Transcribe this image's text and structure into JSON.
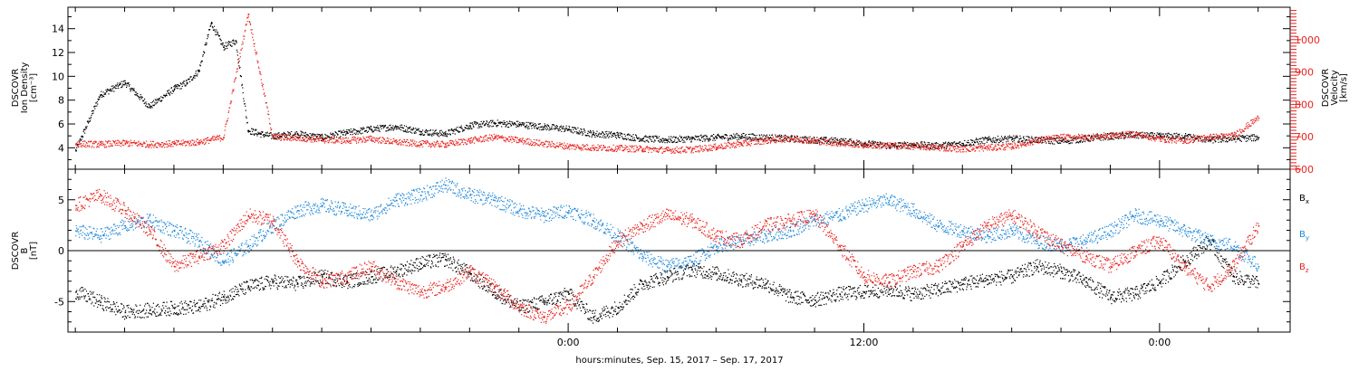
{
  "footer_label": "hours:minutes, Sep. 15, 2017 – Sep. 17, 2017",
  "colors": {
    "black": "#000000",
    "red": "#e8231f",
    "blue": "#1e88d8"
  },
  "chart_data": [
    {
      "type": "scatter",
      "panel": "ion-density-velocity",
      "ylabel": [
        "DSCOVR",
        "Ion Density",
        "[cm⁻³]"
      ],
      "ylabel_right": [
        "DSCOVR",
        "Velocity",
        "[km/s]"
      ],
      "ylim": [
        2.2,
        15.8
      ],
      "yticks": [
        4,
        6,
        8,
        10,
        12,
        14
      ],
      "ylim_right": [
        600,
        1100
      ],
      "yticks_right": [
        600,
        700,
        800,
        900,
        1000
      ],
      "series": [
        {
          "color": "black",
          "axis": "left",
          "x": [
            -20.0,
            -19.0,
            -18.0,
            -17.0,
            -16.0,
            -15.5,
            -15.0,
            -14.5,
            -14.0,
            -13.5,
            -13.0,
            -12.5,
            -12.0,
            -11.0,
            -10.0,
            -9.0,
            -8.0,
            -7.0,
            -6.0,
            -5.0,
            -4.0,
            -3.0,
            -2.0,
            -1.0,
            0.0,
            1.0,
            2.0,
            3.0,
            4.0,
            5.0,
            6.0,
            7.0,
            8.0,
            9.0,
            10.0,
            11.0,
            12.0,
            13.0,
            14.0,
            15.0,
            16.0,
            17.0,
            18.0,
            19.0,
            20.0,
            21.0,
            22.0,
            23.0,
            24.0,
            25.0,
            26.0,
            27.0,
            28.0
          ],
          "y": [
            3.8,
            8.5,
            9.5,
            7.5,
            9.0,
            9.5,
            10.5,
            14.5,
            12.5,
            13.0,
            5.5,
            5.2,
            5.0,
            5.2,
            4.9,
            5.3,
            5.6,
            5.8,
            5.4,
            5.2,
            5.9,
            6.1,
            6.0,
            5.8,
            5.6,
            5.2,
            5.1,
            4.8,
            4.7,
            4.8,
            4.9,
            5.0,
            4.9,
            4.8,
            4.7,
            4.6,
            4.4,
            4.2,
            4.3,
            4.2,
            4.4,
            4.7,
            4.8,
            4.7,
            4.6,
            4.8,
            5.0,
            5.1,
            5.0,
            5.0,
            4.7,
            4.8,
            4.9
          ]
        },
        {
          "color": "red",
          "axis": "right",
          "x": [
            -20.0,
            -19.0,
            -18.0,
            -17.0,
            -16.0,
            -15.0,
            -14.0,
            -13.0,
            -12.0,
            -11.0,
            -10.0,
            -9.0,
            -8.0,
            -7.0,
            -6.0,
            -5.0,
            -4.0,
            -3.0,
            -2.0,
            -1.0,
            0.0,
            1.0,
            2.0,
            3.0,
            4.0,
            5.0,
            6.0,
            7.0,
            8.0,
            9.0,
            10.0,
            11.0,
            12.0,
            13.0,
            14.0,
            15.0,
            16.0,
            17.0,
            18.0,
            19.0,
            20.0,
            21.0,
            22.0,
            23.0,
            24.0,
            25.0,
            26.0,
            27.0,
            28.0
          ],
          "y": [
            680,
            678,
            682,
            678,
            680,
            685,
            700,
            1080,
            700,
            698,
            692,
            690,
            695,
            685,
            680,
            678,
            690,
            700,
            690,
            680,
            672,
            668,
            666,
            664,
            660,
            662,
            670,
            680,
            690,
            696,
            688,
            682,
            676,
            674,
            672,
            668,
            664,
            668,
            672,
            690,
            700,
            700,
            705,
            710,
            695,
            690,
            700,
            705,
            760
          ]
        }
      ]
    },
    {
      "type": "scatter",
      "panel": "magnetic-field",
      "ylabel": [
        "DSCOVR",
        "B",
        "[nT]"
      ],
      "ylim": [
        -8,
        8
      ],
      "yticks": [
        -5,
        0,
        5
      ],
      "legend": [
        "Bx",
        "By",
        "Bz"
      ],
      "series": [
        {
          "name": "Bx",
          "color": "black",
          "x": [
            -20.0,
            -19.0,
            -18.0,
            -17.0,
            -16.0,
            -15.0,
            -14.0,
            -13.0,
            -12.0,
            -11.0,
            -10.0,
            -9.0,
            -8.0,
            -7.0,
            -6.0,
            -5.0,
            -4.0,
            -3.0,
            -2.0,
            -1.0,
            0.0,
            1.0,
            2.0,
            3.0,
            4.0,
            5.0,
            6.0,
            7.0,
            8.0,
            9.0,
            10.0,
            11.0,
            12.0,
            13.0,
            14.0,
            15.0,
            16.0,
            17.0,
            18.0,
            19.0,
            20.0,
            21.0,
            22.0,
            23.0,
            24.0,
            25.0,
            26.0,
            27.0,
            28.0
          ],
          "y": [
            -4.0,
            -5.0,
            -6.0,
            -5.8,
            -5.6,
            -5.5,
            -4.5,
            -3.5,
            -3.0,
            -3.2,
            -2.5,
            -3.0,
            -2.5,
            -2.0,
            -1.2,
            -0.8,
            -2.2,
            -4.0,
            -5.5,
            -5.0,
            -4.2,
            -6.5,
            -5.5,
            -3.2,
            -2.5,
            -1.8,
            -2.2,
            -2.8,
            -3.2,
            -4.5,
            -4.8,
            -4.2,
            -4.0,
            -3.8,
            -4.2,
            -3.8,
            -3.2,
            -2.8,
            -2.5,
            -1.5,
            -2.0,
            -3.0,
            -4.5,
            -4.2,
            -3.0,
            -1.0,
            1.0,
            -2.5,
            -3.2
          ]
        },
        {
          "name": "By",
          "color": "blue",
          "x": [
            -20.0,
            -19.0,
            -18.0,
            -17.0,
            -16.0,
            -15.0,
            -14.0,
            -13.0,
            -12.0,
            -11.0,
            -10.0,
            -9.0,
            -8.0,
            -7.0,
            -6.0,
            -5.0,
            -4.0,
            -3.0,
            -2.0,
            -1.0,
            0.0,
            1.0,
            2.0,
            3.0,
            4.0,
            5.0,
            6.0,
            7.0,
            8.0,
            9.0,
            10.0,
            11.0,
            12.0,
            13.0,
            14.0,
            15.0,
            16.0,
            17.0,
            18.0,
            19.0,
            20.0,
            21.0,
            22.0,
            23.0,
            24.0,
            25.0,
            26.0,
            27.0,
            28.0
          ],
          "y": [
            2.0,
            1.5,
            2.5,
            3.0,
            2.0,
            1.0,
            -1.0,
            0.5,
            2.5,
            4.0,
            4.5,
            4.0,
            3.5,
            5.0,
            5.5,
            6.5,
            5.5,
            5.0,
            4.0,
            3.5,
            4.0,
            3.0,
            1.5,
            -0.5,
            -1.5,
            -1.0,
            0.5,
            1.0,
            1.5,
            2.0,
            3.0,
            3.5,
            4.5,
            5.0,
            4.0,
            2.5,
            2.0,
            1.5,
            2.0,
            1.0,
            0.5,
            1.0,
            2.0,
            3.5,
            3.0,
            2.0,
            1.0,
            0.5,
            -1.5
          ]
        },
        {
          "name": "Bz",
          "color": "red",
          "x": [
            -20.0,
            -19.0,
            -18.0,
            -17.0,
            -16.0,
            -15.0,
            -14.0,
            -13.0,
            -12.0,
            -11.0,
            -10.0,
            -9.0,
            -8.0,
            -7.0,
            -6.0,
            -5.0,
            -4.0,
            -3.0,
            -2.0,
            -1.0,
            0.0,
            1.0,
            2.0,
            3.0,
            4.0,
            5.0,
            6.0,
            7.0,
            8.0,
            9.0,
            10.0,
            11.0,
            12.0,
            13.0,
            14.0,
            15.0,
            16.0,
            17.0,
            18.0,
            19.0,
            20.0,
            21.0,
            22.0,
            23.0,
            24.0,
            25.0,
            26.0,
            27.0,
            28.0
          ],
          "y": [
            4.5,
            5.5,
            4.0,
            2.0,
            -1.5,
            -0.5,
            0.5,
            3.5,
            3.0,
            -1.0,
            -3.0,
            -2.5,
            -1.5,
            -3.0,
            -4.0,
            -3.5,
            -2.0,
            -3.5,
            -5.5,
            -6.5,
            -5.5,
            -2.5,
            1.0,
            2.5,
            3.5,
            3.0,
            1.5,
            1.0,
            2.5,
            3.0,
            3.5,
            0.5,
            -2.5,
            -3.0,
            -2.0,
            -1.5,
            0.5,
            2.5,
            3.5,
            2.0,
            0.5,
            -0.5,
            -1.5,
            0.0,
            1.0,
            -1.5,
            -3.5,
            -1.5,
            2.5
          ]
        }
      ]
    }
  ],
  "x_axis": {
    "range": [
      -20.3,
      29.3
    ],
    "major_ticks": [
      {
        "x": 0,
        "label": "0:00"
      },
      {
        "x": 12,
        "label": "12:00"
      },
      {
        "x": 24,
        "label": "0:00"
      }
    ],
    "minor_step": 2
  }
}
